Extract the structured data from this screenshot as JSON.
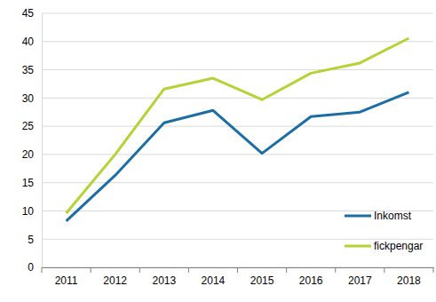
{
  "chart_data": {
    "type": "line",
    "categories": [
      "2011",
      "2012",
      "2013",
      "2014",
      "2015",
      "2016",
      "2017",
      "2018"
    ],
    "series": [
      {
        "name": "Inkomst",
        "color": "#1b6ea5",
        "values": [
          8.2,
          16.3,
          25.6,
          27.8,
          20.2,
          26.7,
          27.5,
          31.0
        ]
      },
      {
        "name": "fickpengar",
        "color": "#b4d334",
        "values": [
          9.6,
          20.0,
          31.6,
          33.5,
          29.7,
          34.4,
          36.2,
          40.6
        ]
      }
    ],
    "ylim": [
      0,
      45
    ],
    "yticks": [
      0,
      5,
      10,
      15,
      20,
      25,
      30,
      35,
      40,
      45
    ],
    "grid": true,
    "legend": "lower right"
  }
}
